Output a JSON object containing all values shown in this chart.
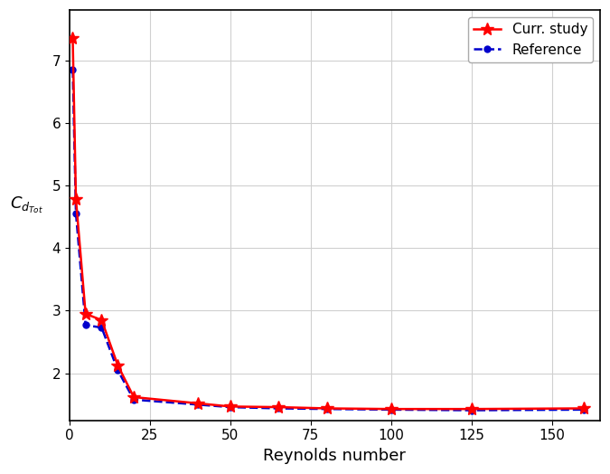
{
  "curr_study_x": [
    1,
    2,
    5,
    10,
    15,
    20,
    40,
    50,
    65,
    80,
    100,
    125,
    160
  ],
  "curr_study_y": [
    7.35,
    4.78,
    2.95,
    2.85,
    2.13,
    1.62,
    1.52,
    1.47,
    1.46,
    1.44,
    1.43,
    1.43,
    1.44
  ],
  "reference_x": [
    1,
    2,
    5,
    10,
    15,
    20,
    40,
    50,
    65,
    80,
    100,
    125,
    160
  ],
  "reference_y": [
    6.85,
    4.55,
    2.77,
    2.73,
    2.05,
    1.58,
    1.5,
    1.46,
    1.44,
    1.43,
    1.42,
    1.41,
    1.42
  ],
  "xlabel": "Reynolds number",
  "ylabel": "$C_{d_{Tot}}$",
  "xlim": [
    0,
    165
  ],
  "ylim": [
    1.25,
    7.8
  ],
  "yticks": [
    2,
    3,
    4,
    5,
    6,
    7
  ],
  "xticks": [
    0,
    25,
    50,
    75,
    100,
    125,
    150
  ],
  "curr_color": "#ff0000",
  "ref_color": "#0000cc",
  "grid_color": "#d0d0d0",
  "legend_labels": [
    "Curr. study",
    "Reference"
  ],
  "bg_color": "#ffffff"
}
